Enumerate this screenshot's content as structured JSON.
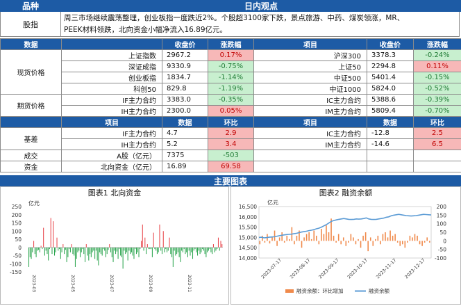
{
  "header": {
    "col1": "品种",
    "col2": "日内观点"
  },
  "commentary": {
    "label": "股指",
    "line1": "周三市场继续震荡整理，创业板指一度跌近2%。个股超3100家下跌，景点旅游、中药、煤炭领涨，MR、",
    "line2": "PEEK材料领跌，北向资金小幅净流入16.89亿元。"
  },
  "data_header": {
    "title": "数据",
    "close": "收盘价",
    "change": "涨跌幅",
    "item": "项目"
  },
  "spot": {
    "label": "现货价格",
    "rows": [
      {
        "name": "上证指数",
        "close": "2967.2",
        "chg": "0.17%",
        "dir": "pos",
        "name2": "沪深300",
        "close2": "3378.3",
        "chg2": "-0.24%",
        "dir2": "neg"
      },
      {
        "name": "深证成指",
        "close": "9330.9",
        "chg": "-0.75%",
        "dir": "neg",
        "name2": "上证50",
        "close2": "2294.8",
        "chg2": "0.11%",
        "dir2": "pos"
      },
      {
        "name": "创业板指",
        "close": "1834.7",
        "chg": "-1.14%",
        "dir": "neg",
        "name2": "中证500",
        "close2": "5401.4",
        "chg2": "-0.15%",
        "dir2": "neg"
      },
      {
        "name": "科创50",
        "close": "829.8",
        "chg": "-1.19%",
        "dir": "neg",
        "name2": "中证1000",
        "close2": "5824.0",
        "chg2": "-0.52%",
        "dir2": "neg"
      }
    ]
  },
  "futures": {
    "label": "期货价格",
    "rows": [
      {
        "name": "IF主力合约",
        "close": "3383.0",
        "chg": "-0.35%",
        "dir": "neg",
        "name2": "IC主力合约",
        "close2": "5388.6",
        "chg2": "-0.39%",
        "dir2": "neg"
      },
      {
        "name": "IH主力合约",
        "close": "2300.0",
        "chg": "0.05%",
        "dir": "pos",
        "name2": "IM主力合约",
        "close2": "5809.4",
        "chg2": "-0.70%",
        "dir2": "neg"
      }
    ]
  },
  "basis_header": {
    "item": "项目",
    "data": "数据",
    "ratio": "环比"
  },
  "basis": {
    "label": "基差",
    "rows": [
      {
        "name": "IF主力合约",
        "val": "4.7",
        "ratio": "2.9",
        "dir": "pos",
        "name2": "IC主力合约",
        "val2": "-12.8",
        "ratio2": "2.5",
        "dir2": "pos"
      },
      {
        "name": "IH主力合约",
        "val": "5.2",
        "ratio": "3.4",
        "dir": "pos",
        "name2": "IM主力合约",
        "val2": "-14.6",
        "ratio2": "6.5",
        "dir2": "pos"
      }
    ]
  },
  "turnover": {
    "label": "成交",
    "name": "A股（亿元）",
    "val": "7375",
    "ratio": "-503",
    "dir": "neg"
  },
  "capital": {
    "label": "资金",
    "name": "北向资金（亿元）",
    "val": "16.89",
    "ratio": "69.58",
    "dir": "pos"
  },
  "charts_header": "主要图表",
  "chart1": {
    "title": "图表1  北向资金",
    "unit": "亿元",
    "yticks": [
      "250",
      "200",
      "150",
      "100",
      "50",
      "0",
      "-50",
      "-100",
      "-150"
    ],
    "xlabels": [
      "2023-03",
      "2023-05",
      "2023-07",
      "2023-09",
      "2023-11"
    ]
  },
  "chart2": {
    "title": "图表2  融资余额",
    "unit": "亿元",
    "yticks_left": [
      "16,500",
      "16,000",
      "15,500",
      "15,000",
      "14,500",
      "14,000"
    ],
    "yticks_right": [
      "200",
      "150",
      "100",
      "50",
      "0",
      "-50",
      "-100"
    ],
    "xlabels": [
      "2023-07-17",
      "2023-08-17",
      "2023-09-17",
      "2023-10-17",
      "2023-11-17",
      "2023-12-17"
    ],
    "legend_bar": "融资余额：环比增加",
    "legend_line": "融资余额",
    "colors": {
      "bar": "#f08a4b",
      "line": "#5b9bd5"
    }
  },
  "chart_data": [
    {
      "type": "bar",
      "title": "图表1  北向资金",
      "ylabel": "亿元",
      "ylim": [
        -150,
        250
      ],
      "series": [
        {
          "values": [
            -120,
            -60,
            -70,
            -30,
            40,
            -40,
            -60,
            -20,
            -15,
            -30,
            10,
            -10,
            120,
            -50,
            -20,
            -40,
            -80,
            -10,
            180,
            -40,
            160,
            -50,
            -30,
            60,
            -20,
            -10,
            -70,
            -30,
            20,
            -40,
            -15,
            -90,
            -60,
            -10,
            -30,
            20,
            -40,
            -50,
            -120,
            -70,
            -30,
            -20,
            -60,
            -30,
            -10,
            -40,
            -90,
            20,
            -50,
            -80,
            -40,
            -60,
            -30,
            -20,
            -70,
            -20,
            -80,
            -110,
            -30,
            -40,
            -50,
            -10,
            -20,
            -60,
            -40,
            -15,
            20,
            -30,
            -60,
            -90,
            -20,
            -40,
            -25,
            -70,
            -10,
            -50,
            -60,
            -130,
            -20,
            -40,
            -30,
            -80,
            -20,
            -40,
            -30,
            -50,
            -70,
            -10,
            -40,
            -30,
            -60,
            -10,
            40,
            140,
            -20,
            60,
            -40,
            20,
            -10,
            -10,
            -10,
            -60,
            90,
            -10,
            -20,
            -40,
            -30,
            140,
            -20,
            -40,
            100,
            -30,
            -10,
            -30,
            -20,
            60,
            -40,
            -60,
            -120,
            -20,
            -50,
            -40,
            -30,
            -60,
            -90,
            -20,
            -30,
            -10,
            -40,
            -30,
            -60,
            -20,
            -50,
            -30,
            -70,
            -20,
            -10,
            -30,
            -50,
            -20,
            -40,
            -30,
            -10,
            -20,
            -40,
            -60,
            -30,
            -20,
            -10,
            -30,
            -40,
            20,
            -30,
            -20,
            -10,
            60,
            -20,
            40,
            20
          ]
        }
      ]
    },
    {
      "type": "line",
      "title": "图表2  融资余额",
      "ylabel": "亿元",
      "ylim": [
        14000,
        16500
      ],
      "series": [
        {
          "name": "融资余额",
          "values": [
            15000,
            15010,
            14980,
            14990,
            15010,
            15020,
            15030,
            15050,
            15080,
            15100,
            15120,
            15140,
            15150,
            15160,
            15180,
            15200,
            15230,
            15260,
            15280,
            15300,
            15330,
            15350,
            15380,
            15420,
            15450,
            15500,
            15560,
            15620,
            15700,
            15780,
            15820,
            15850,
            15880,
            15900,
            15920,
            15900,
            15880,
            15870,
            15880,
            15900,
            15890,
            15900,
            15920,
            15950,
            15900,
            15880,
            15870,
            15880,
            15900,
            15920,
            15940,
            15980,
            16000,
            16050,
            16080,
            16100,
            16120,
            16100,
            16080,
            16060,
            16050,
            16040,
            16050,
            16060,
            16080,
            16100,
            16120,
            16110,
            16100,
            16090
          ]
        },
        {
          "name": "融资余额：环比增加",
          "values": [
            -20,
            30,
            -10,
            40,
            -15,
            20,
            60,
            -30,
            20,
            50,
            -10,
            30,
            10,
            80,
            -20,
            30,
            60,
            -40,
            20,
            40,
            50,
            10,
            60,
            30,
            -20,
            70,
            40,
            90,
            50,
            130,
            30,
            -10,
            40,
            -20,
            20,
            -30,
            -10,
            40,
            20,
            -20,
            10,
            -40,
            30,
            50,
            -60,
            20,
            -30,
            10,
            30,
            -20,
            40,
            50,
            20,
            60,
            30,
            40,
            -10,
            -30,
            -20,
            -40,
            -10,
            30,
            20,
            40,
            30,
            -20,
            -30,
            -10,
            20,
            -10
          ]
        }
      ]
    }
  ]
}
